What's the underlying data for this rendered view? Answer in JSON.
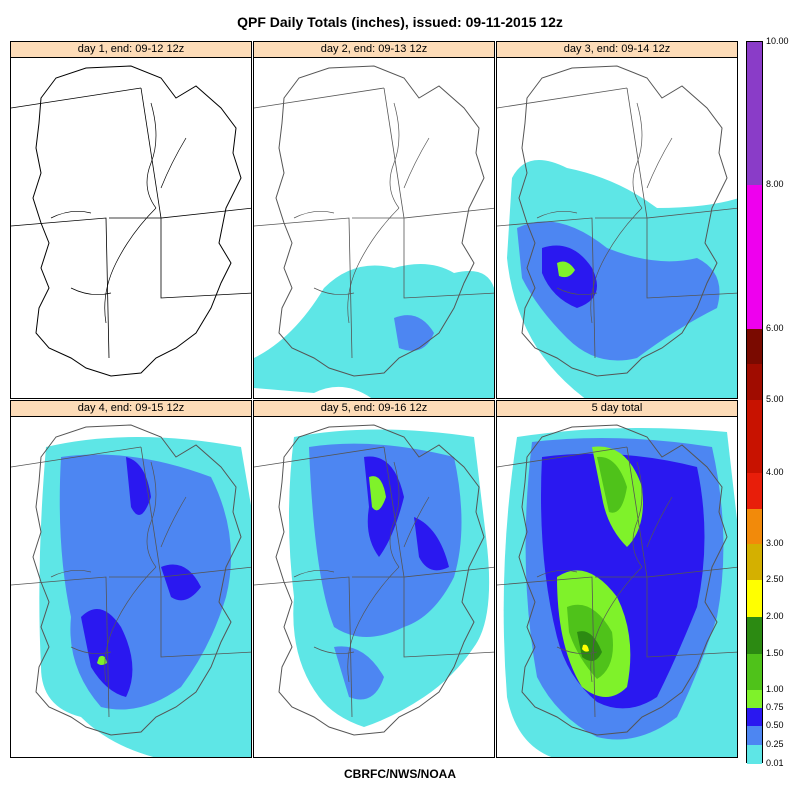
{
  "title": "QPF Daily Totals (inches),  issued: 09-11-2015 12z",
  "footer": "CBRFC/NWS/NOAA",
  "panels": [
    {
      "label": "day 1, end: 09-12 12z",
      "coverage": "none"
    },
    {
      "label": "day 2, end: 09-13 12z",
      "coverage": "light-south"
    },
    {
      "label": "day 3, end: 09-14 12z",
      "coverage": "moderate-central"
    },
    {
      "label": "day 4, end: 09-15 12z",
      "coverage": "widespread"
    },
    {
      "label": "day 5, end: 09-16 12z",
      "coverage": "widespread-north"
    },
    {
      "label": "5 day total",
      "coverage": "heavy-total"
    }
  ],
  "legend": {
    "bins": [
      {
        "label": "0.01",
        "color": "#5ee6e6"
      },
      {
        "label": "0.25",
        "color": "#4d86f2"
      },
      {
        "label": "0.50",
        "color": "#2a18f0"
      },
      {
        "label": "0.75",
        "color": "#7ff22a"
      },
      {
        "label": "1.00",
        "color": "#4fc21a"
      },
      {
        "label": "1.50",
        "color": "#2c8a12"
      },
      {
        "label": "2.00",
        "color": "#ffff00"
      },
      {
        "label": "2.50",
        "color": "#d4b000"
      },
      {
        "label": "3.00",
        "color": "#f28a0a"
      },
      {
        "label": "4.00",
        "color": "#e81e0a"
      },
      {
        "label": "5.00",
        "color": "#c81200"
      },
      {
        "label": "6.00",
        "color": "#a00c00"
      },
      {
        "label": "8.00",
        "color": "#7a0a00"
      },
      {
        "label": "10.00",
        "color": "#ee00ee"
      }
    ],
    "top_color": "#8a3cc8"
  }
}
